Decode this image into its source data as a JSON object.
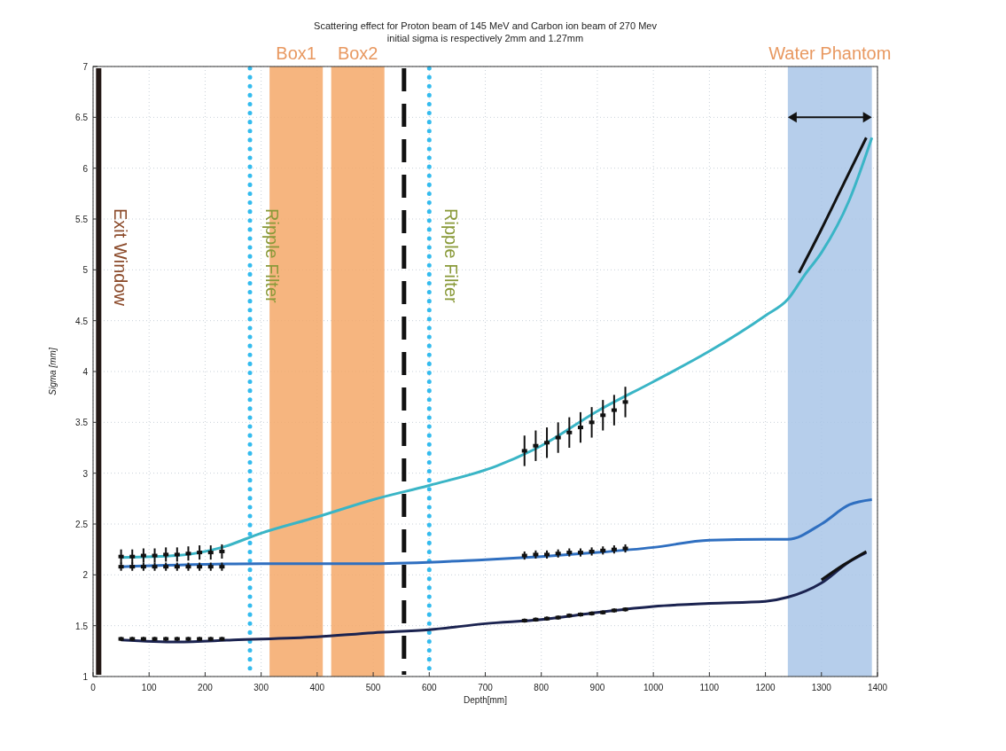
{
  "chart_data": {
    "type": "line",
    "title": "Scattering effect for Proton beam of 145 MeV and Carbon ion beam of 270 Mev",
    "subtitle": "initial sigma is respectively 2mm and 1.27mm",
    "xlabel": "Depth[mm]",
    "ylabel": "Sigma [mm]",
    "xlim": [
      0,
      1400
    ],
    "xticks": [
      0,
      100,
      200,
      300,
      400,
      500,
      600,
      700,
      800,
      900,
      1000,
      1100,
      1200,
      1300,
      1400
    ],
    "ylim": [
      1,
      7
    ],
    "yticks": [
      1,
      1.5,
      2,
      2.5,
      3,
      3.5,
      4,
      4.5,
      5,
      5.5,
      6,
      6.5,
      7
    ],
    "grid": true,
    "line_style": "solid",
    "series": [
      {
        "color": "#3ab5c6",
        "x": [
          50,
          150,
          230,
          300,
          400,
          500,
          600,
          720,
          800,
          900,
          1000,
          1100,
          1200,
          1240,
          1270,
          1300,
          1350,
          1390
        ],
        "values": [
          2.17,
          2.19,
          2.27,
          2.41,
          2.57,
          2.74,
          2.88,
          3.07,
          3.27,
          3.61,
          3.9,
          4.2,
          4.55,
          4.71,
          4.95,
          5.17,
          5.69,
          6.3
        ]
      },
      {
        "color": "#2f6fc0",
        "x": [
          50,
          300,
          500,
          700,
          800,
          900,
          1000,
          1100,
          1200,
          1240,
          1300,
          1350,
          1390
        ],
        "values": [
          2.08,
          2.11,
          2.11,
          2.15,
          2.18,
          2.22,
          2.27,
          2.34,
          2.35,
          2.35,
          2.5,
          2.69,
          2.74
        ]
      },
      {
        "color": "#1b2350",
        "x": [
          50,
          150,
          250,
          400,
          500,
          600,
          700,
          800,
          900,
          1000,
          1100,
          1200,
          1240,
          1300,
          1350,
          1380
        ],
        "values": [
          1.36,
          1.34,
          1.36,
          1.39,
          1.43,
          1.46,
          1.52,
          1.56,
          1.63,
          1.69,
          1.72,
          1.74,
          1.78,
          1.92,
          2.13,
          2.22
        ]
      },
      {
        "color": "#111111",
        "x": [
          1260,
          1300,
          1340,
          1380
        ],
        "values": [
          4.97,
          5.4,
          5.85,
          6.3
        ]
      },
      {
        "color": "#111111",
        "x": [
          1300,
          1340,
          1380
        ],
        "values": [
          1.95,
          2.1,
          2.23
        ]
      },
      {
        "type": "scatter",
        "color": "#111111",
        "marker": "square",
        "x": [
          50,
          70,
          90,
          110,
          130,
          150,
          170,
          190,
          210,
          230,
          50,
          70,
          90,
          110,
          130,
          150,
          170,
          190,
          210,
          230,
          50,
          70,
          90,
          110,
          130,
          150,
          170,
          190,
          210,
          230,
          770,
          790,
          810,
          830,
          850,
          870,
          890,
          910,
          930,
          950,
          770,
          790,
          810,
          830,
          850,
          870,
          890,
          910,
          930,
          950,
          770,
          790,
          810,
          830,
          850,
          870,
          890,
          910,
          930,
          950
        ],
        "values": [
          2.18,
          2.18,
          2.19,
          2.19,
          2.2,
          2.2,
          2.21,
          2.22,
          2.22,
          2.23,
          2.08,
          2.08,
          2.08,
          2.08,
          2.08,
          2.08,
          2.08,
          2.08,
          2.08,
          2.08,
          1.37,
          1.37,
          1.37,
          1.37,
          1.37,
          1.37,
          1.37,
          1.37,
          1.37,
          1.37,
          3.22,
          3.27,
          3.3,
          3.35,
          3.4,
          3.45,
          3.5,
          3.57,
          3.62,
          3.7,
          2.19,
          2.2,
          2.2,
          2.21,
          2.22,
          2.22,
          2.23,
          2.24,
          2.25,
          2.26,
          1.55,
          1.56,
          1.57,
          1.58,
          1.6,
          1.61,
          1.62,
          1.63,
          1.65,
          1.66
        ],
        "errors": [
          0.07,
          0.07,
          0.07,
          0.07,
          0.07,
          0.07,
          0.07,
          0.07,
          0.07,
          0.07,
          0.04,
          0.04,
          0.04,
          0.04,
          0.04,
          0.04,
          0.04,
          0.04,
          0.04,
          0.04,
          0.02,
          0.02,
          0.02,
          0.02,
          0.02,
          0.02,
          0.02,
          0.02,
          0.02,
          0.02,
          0.15,
          0.15,
          0.15,
          0.15,
          0.15,
          0.15,
          0.15,
          0.15,
          0.15,
          0.15,
          0.04,
          0.04,
          0.04,
          0.04,
          0.04,
          0.04,
          0.04,
          0.04,
          0.04,
          0.04,
          0.02,
          0.02,
          0.02,
          0.02,
          0.02,
          0.02,
          0.02,
          0.02,
          0.02,
          0.02
        ]
      }
    ],
    "ref_lines": [
      {
        "axis": "x",
        "value": 10,
        "label": "Exit Window",
        "color": "#231815",
        "line_style": "solid"
      },
      {
        "axis": "x",
        "value": 280,
        "label": "Ripple Filter",
        "color": "#33bbee",
        "line_style": "dotted"
      },
      {
        "axis": "x",
        "value": 555,
        "label": null,
        "color": "#111111",
        "line_style": "dashed"
      },
      {
        "axis": "x",
        "value": 600,
        "label": "Ripple Filter",
        "color": "#33bbee",
        "line_style": "dotted"
      }
    ],
    "bands": [
      {
        "axis": "x",
        "from": 315,
        "to": 410,
        "label": "Box1",
        "color": "#f4a868"
      },
      {
        "axis": "x",
        "from": 425,
        "to": 520,
        "label": "Box2",
        "color": "#f4a868"
      },
      {
        "axis": "x",
        "from": 1240,
        "to": 1390,
        "label": "Water Phantom",
        "color": "#a9c6e8"
      }
    ]
  }
}
